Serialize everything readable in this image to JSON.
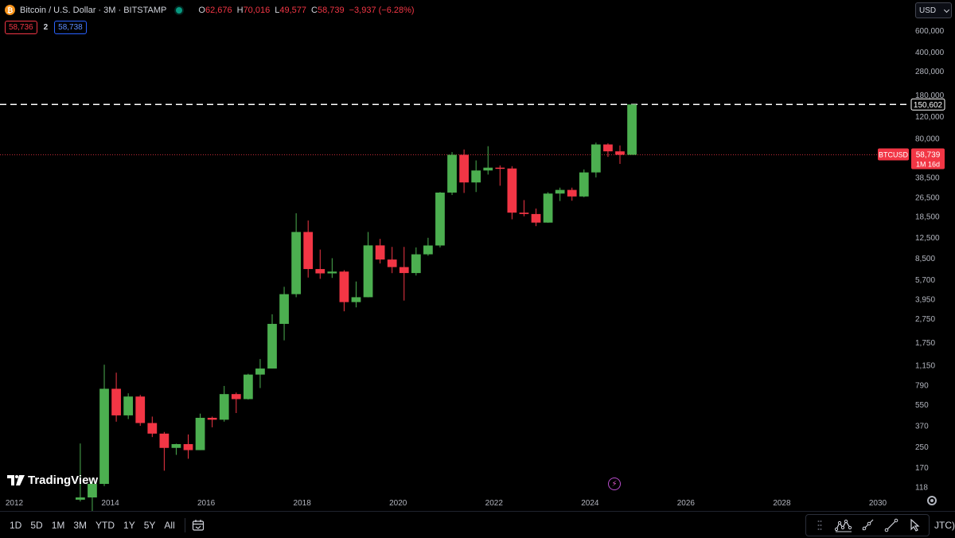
{
  "legend": {
    "logo_letter": "₿",
    "title": "Bitcoin / U.S. Dollar · 3M · BITSTAMP",
    "ohlc": [
      {
        "k": "O",
        "v": "62,676"
      },
      {
        "k": "H",
        "v": "70,016"
      },
      {
        "k": "L",
        "v": "49,577"
      },
      {
        "k": "C",
        "v": "58,739"
      }
    ],
    "change": "−3,937 (−6.28%)"
  },
  "trading": {
    "sell": "58,736",
    "spread": "2",
    "buy": "58,738"
  },
  "currency": "USD",
  "brand": {
    "name": "TradingView"
  },
  "chart_data": {
    "type": "candlestick",
    "symbol": "BTCUSD",
    "interval": "3M",
    "y_scale": "log",
    "ylim": [
      100,
      700000
    ],
    "y_ticks": [
      {
        "v": 600000,
        "label": "600,000"
      },
      {
        "v": 400000,
        "label": "400,000"
      },
      {
        "v": 280000,
        "label": "280,000"
      },
      {
        "v": 180000,
        "label": "180,000"
      },
      {
        "v": 120000,
        "label": "120,000"
      },
      {
        "v": 80000,
        "label": "80,000"
      },
      {
        "v": 38500,
        "label": "38,500"
      },
      {
        "v": 26500,
        "label": "26,500"
      },
      {
        "v": 18500,
        "label": "18,500"
      },
      {
        "v": 12500,
        "label": "12,500"
      },
      {
        "v": 8500,
        "label": "8,500"
      },
      {
        "v": 5700,
        "label": "5,700"
      },
      {
        "v": 3950,
        "label": "3,950"
      },
      {
        "v": 2750,
        "label": "2,750"
      },
      {
        "v": 1750,
        "label": "1,750"
      },
      {
        "v": 1150,
        "label": "1,150"
      },
      {
        "v": 790,
        "label": "790"
      },
      {
        "v": 550,
        "label": "550"
      },
      {
        "v": 370,
        "label": "370"
      },
      {
        "v": 250,
        "label": "250"
      },
      {
        "v": 170,
        "label": "170"
      },
      {
        "v": 118,
        "label": "118"
      }
    ],
    "x_ticks": [
      "2012",
      "2014",
      "2016",
      "2018",
      "2020",
      "2022",
      "2024",
      "2026",
      "2028",
      "2030"
    ],
    "xlim": [
      2012,
      2030
    ],
    "candles": [
      {
        "t": 2013.25,
        "o": 93,
        "h": 266,
        "l": 90,
        "c": 97
      },
      {
        "t": 2013.5,
        "o": 97,
        "h": 140,
        "l": 65,
        "c": 125
      },
      {
        "t": 2013.75,
        "o": 125,
        "h": 1160,
        "l": 120,
        "c": 740
      },
      {
        "t": 2014.0,
        "o": 740,
        "h": 1000,
        "l": 400,
        "c": 450
      },
      {
        "t": 2014.25,
        "o": 450,
        "h": 680,
        "l": 420,
        "c": 640
      },
      {
        "t": 2014.5,
        "o": 640,
        "h": 660,
        "l": 370,
        "c": 390
      },
      {
        "t": 2014.75,
        "o": 390,
        "h": 440,
        "l": 300,
        "c": 320
      },
      {
        "t": 2015.0,
        "o": 320,
        "h": 330,
        "l": 160,
        "c": 245
      },
      {
        "t": 2015.25,
        "o": 245,
        "h": 265,
        "l": 215,
        "c": 263
      },
      {
        "t": 2015.5,
        "o": 263,
        "h": 315,
        "l": 200,
        "c": 235
      },
      {
        "t": 2015.75,
        "o": 235,
        "h": 465,
        "l": 235,
        "c": 430
      },
      {
        "t": 2016.0,
        "o": 430,
        "h": 440,
        "l": 360,
        "c": 415
      },
      {
        "t": 2016.25,
        "o": 415,
        "h": 780,
        "l": 400,
        "c": 670
      },
      {
        "t": 2016.5,
        "o": 670,
        "h": 690,
        "l": 470,
        "c": 610
      },
      {
        "t": 2016.75,
        "o": 610,
        "h": 980,
        "l": 605,
        "c": 965
      },
      {
        "t": 2017.0,
        "o": 965,
        "h": 1290,
        "l": 750,
        "c": 1080
      },
      {
        "t": 2017.25,
        "o": 1080,
        "h": 2980,
        "l": 1080,
        "c": 2490
      },
      {
        "t": 2017.5,
        "o": 2490,
        "h": 4980,
        "l": 1830,
        "c": 4340
      },
      {
        "t": 2017.75,
        "o": 4340,
        "h": 19700,
        "l": 4100,
        "c": 13880
      },
      {
        "t": 2018.0,
        "o": 13880,
        "h": 17200,
        "l": 5920,
        "c": 6940
      },
      {
        "t": 2018.25,
        "o": 6940,
        "h": 9990,
        "l": 5780,
        "c": 6400
      },
      {
        "t": 2018.5,
        "o": 6400,
        "h": 8500,
        "l": 5880,
        "c": 6620
      },
      {
        "t": 2018.75,
        "o": 6620,
        "h": 6800,
        "l": 3150,
        "c": 3740
      },
      {
        "t": 2019.0,
        "o": 3740,
        "h": 5500,
        "l": 3390,
        "c": 4100
      },
      {
        "t": 2019.25,
        "o": 4100,
        "h": 13880,
        "l": 4090,
        "c": 10800
      },
      {
        "t": 2019.5,
        "o": 10800,
        "h": 12200,
        "l": 7700,
        "c": 8290
      },
      {
        "t": 2019.75,
        "o": 8290,
        "h": 10500,
        "l": 6430,
        "c": 7200
      },
      {
        "t": 2020.0,
        "o": 7200,
        "h": 10500,
        "l": 3850,
        "c": 6440
      },
      {
        "t": 2020.25,
        "o": 6440,
        "h": 10400,
        "l": 6150,
        "c": 9140
      },
      {
        "t": 2020.5,
        "o": 9140,
        "h": 12450,
        "l": 8900,
        "c": 10780
      },
      {
        "t": 2020.75,
        "o": 10780,
        "h": 29300,
        "l": 10400,
        "c": 28990
      },
      {
        "t": 2021.0,
        "o": 28990,
        "h": 61800,
        "l": 27700,
        "c": 58760
      },
      {
        "t": 2021.25,
        "o": 58760,
        "h": 64900,
        "l": 28800,
        "c": 35040
      },
      {
        "t": 2021.5,
        "o": 35040,
        "h": 52900,
        "l": 29300,
        "c": 43830
      },
      {
        "t": 2021.75,
        "o": 43830,
        "h": 69000,
        "l": 40600,
        "c": 46200
      },
      {
        "t": 2022.0,
        "o": 46200,
        "h": 48200,
        "l": 32950,
        "c": 45500
      },
      {
        "t": 2022.25,
        "o": 45500,
        "h": 47500,
        "l": 17600,
        "c": 19920
      },
      {
        "t": 2022.5,
        "o": 19920,
        "h": 25200,
        "l": 18600,
        "c": 19420
      },
      {
        "t": 2022.75,
        "o": 19420,
        "h": 21500,
        "l": 15480,
        "c": 16540
      },
      {
        "t": 2023.0,
        "o": 16540,
        "h": 29200,
        "l": 16500,
        "c": 28460
      },
      {
        "t": 2023.25,
        "o": 28460,
        "h": 31800,
        "l": 24750,
        "c": 30480
      },
      {
        "t": 2023.5,
        "o": 30480,
        "h": 31800,
        "l": 24900,
        "c": 26960
      },
      {
        "t": 2023.75,
        "o": 26960,
        "h": 44700,
        "l": 26560,
        "c": 42270
      },
      {
        "t": 2024.0,
        "o": 42270,
        "h": 73800,
        "l": 38500,
        "c": 71300
      },
      {
        "t": 2024.25,
        "o": 71300,
        "h": 72800,
        "l": 56500,
        "c": 62680
      },
      {
        "t": 2024.5,
        "o": 62676,
        "h": 70016,
        "l": 49577,
        "c": 58739
      },
      {
        "t": 2024.75,
        "o": 58739,
        "h": 150602,
        "l": 58739,
        "c": 150602
      }
    ],
    "price_lines": [
      {
        "value": 150602,
        "label": "150,602",
        "style": "dashed",
        "color": "#ffffff"
      },
      {
        "value": 58739,
        "label": "58,739",
        "style": "dotted",
        "color": "#f23645",
        "symbol": "BTCUSD",
        "countdown": "1M 16d"
      }
    ],
    "colors": {
      "up": "#4caf50",
      "down": "#f23645",
      "wick_up": "#4caf50",
      "wick_down": "#f23645",
      "background": "#000000"
    }
  },
  "bottom_bar": {
    "timeframes": [
      "1D",
      "5D",
      "1M",
      "3M",
      "YTD",
      "1Y",
      "5Y",
      "All"
    ],
    "timezone_label": "JTC)"
  }
}
